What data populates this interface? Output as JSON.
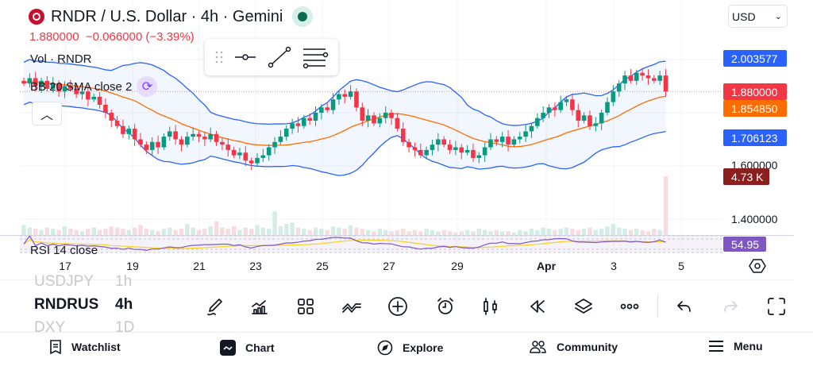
{
  "header": {
    "title": "RNDR / U.S. Dollar · 4h · Gemini",
    "price_change": "1.880000  −0.066000 (−3.39%)",
    "vol_label": "Vol · RNDR",
    "bb_label": "BB 20 SMA close 2",
    "rsi_label": "RSI 14 close",
    "currency": "USD"
  },
  "colors": {
    "up": "#089981",
    "down": "#f23645",
    "bb": "#2962ff",
    "basis": "#ff6d00",
    "rsi": "#7e57c2",
    "rsi_ma": "#f7d21b"
  },
  "price_axis": {
    "ticks": [
      "1.600000",
      "1.400000"
    ],
    "labels": {
      "bb_upper": "2.003577",
      "last": "1.880000",
      "bb_basis": "1.854850",
      "bb_lower": "1.706123",
      "volume": "4.73 K",
      "rsi": "54.95"
    }
  },
  "date_axis": [
    "17",
    "19",
    "21",
    "23",
    "25",
    "27",
    "29",
    "Apr",
    "3",
    "5"
  ],
  "chart_data": {
    "type": "candlestick",
    "ylim": [
      1.4,
      2.05
    ],
    "closes": [
      1.91,
      1.93,
      1.9,
      1.92,
      1.89,
      1.91,
      1.88,
      1.9,
      1.89,
      1.87,
      1.88,
      1.85,
      1.86,
      1.83,
      1.8,
      1.77,
      1.75,
      1.72,
      1.74,
      1.7,
      1.68,
      1.66,
      1.69,
      1.67,
      1.71,
      1.73,
      1.7,
      1.68,
      1.71,
      1.72,
      1.71,
      1.7,
      1.72,
      1.69,
      1.68,
      1.66,
      1.64,
      1.65,
      1.62,
      1.61,
      1.63,
      1.64,
      1.67,
      1.69,
      1.71,
      1.74,
      1.76,
      1.75,
      1.78,
      1.77,
      1.8,
      1.82,
      1.81,
      1.85,
      1.87,
      1.86,
      1.88,
      1.82,
      1.77,
      1.79,
      1.76,
      1.78,
      1.8,
      1.78,
      1.74,
      1.69,
      1.67,
      1.66,
      1.64,
      1.66,
      1.68,
      1.7,
      1.68,
      1.66,
      1.67,
      1.65,
      1.66,
      1.63,
      1.64,
      1.67,
      1.7,
      1.69,
      1.71,
      1.68,
      1.7,
      1.71,
      1.73,
      1.75,
      1.78,
      1.8,
      1.82,
      1.81,
      1.84,
      1.85,
      1.81,
      1.77,
      1.79,
      1.75,
      1.76,
      1.8,
      1.84,
      1.88,
      1.91,
      1.94,
      1.92,
      1.95,
      1.94,
      1.93,
      1.92,
      1.94,
      1.88
    ],
    "volumes_k": [
      0.8,
      0.6,
      0.5,
      0.4,
      0.6,
      0.5,
      0.4,
      0.7,
      0.5,
      0.4,
      0.3,
      0.5,
      0.6,
      0.4,
      0.5,
      0.7,
      0.6,
      0.5,
      0.4,
      0.6,
      0.8,
      0.5,
      0.4,
      0.3,
      0.5,
      0.6,
      0.4,
      0.5,
      0.9,
      0.6,
      0.4,
      0.5,
      0.7,
      1.1,
      0.6,
      0.5,
      0.7,
      0.4,
      0.6,
      0.5,
      0.8,
      0.6,
      0.5,
      1.9,
      0.7,
      0.9,
      1.0,
      0.6,
      0.5,
      0.4,
      0.6,
      0.5,
      0.4,
      0.7,
      0.6,
      0.5,
      0.8,
      0.6,
      0.5,
      0.4,
      0.3,
      0.5,
      0.4,
      0.3,
      0.4,
      0.5,
      0.3,
      0.4,
      0.3,
      0.5,
      0.4,
      0.3,
      0.4,
      0.3,
      0.2,
      0.3,
      0.4,
      0.3,
      0.5,
      0.4,
      0.3,
      0.4,
      0.3,
      0.3,
      0.2,
      0.4,
      0.3,
      0.5,
      0.4,
      0.6,
      0.5,
      0.4,
      0.5,
      0.6,
      0.5,
      0.4,
      0.5,
      0.6,
      0.4,
      0.5,
      0.7,
      0.9,
      0.6,
      0.5,
      0.4,
      0.5,
      0.4,
      0.3,
      0.5,
      0.4,
      4.73
    ]
  },
  "toolbar": {
    "symbols": [
      {
        "symbol": "USDJPY",
        "interval": "1h"
      },
      {
        "symbol": "RNDRUS",
        "interval": "4h"
      },
      {
        "symbol": "DXY",
        "interval": "1D"
      }
    ],
    "icons": [
      "draw-icon",
      "indicators-icon",
      "templates-icon",
      "compare-icon",
      "add-icon",
      "alert-icon",
      "chart-type-icon",
      "replay-icon",
      "layers-icon",
      "more-icon",
      "undo-icon",
      "redo-icon",
      "fullscreen-icon"
    ]
  },
  "nav": [
    {
      "label": "Watchlist",
      "icon": "watchlist-icon"
    },
    {
      "label": "Chart",
      "icon": "chart-icon"
    },
    {
      "label": "Explore",
      "icon": "compass-icon"
    },
    {
      "label": "Community",
      "icon": "community-icon"
    },
    {
      "label": "Menu",
      "icon": "menu-icon"
    }
  ]
}
